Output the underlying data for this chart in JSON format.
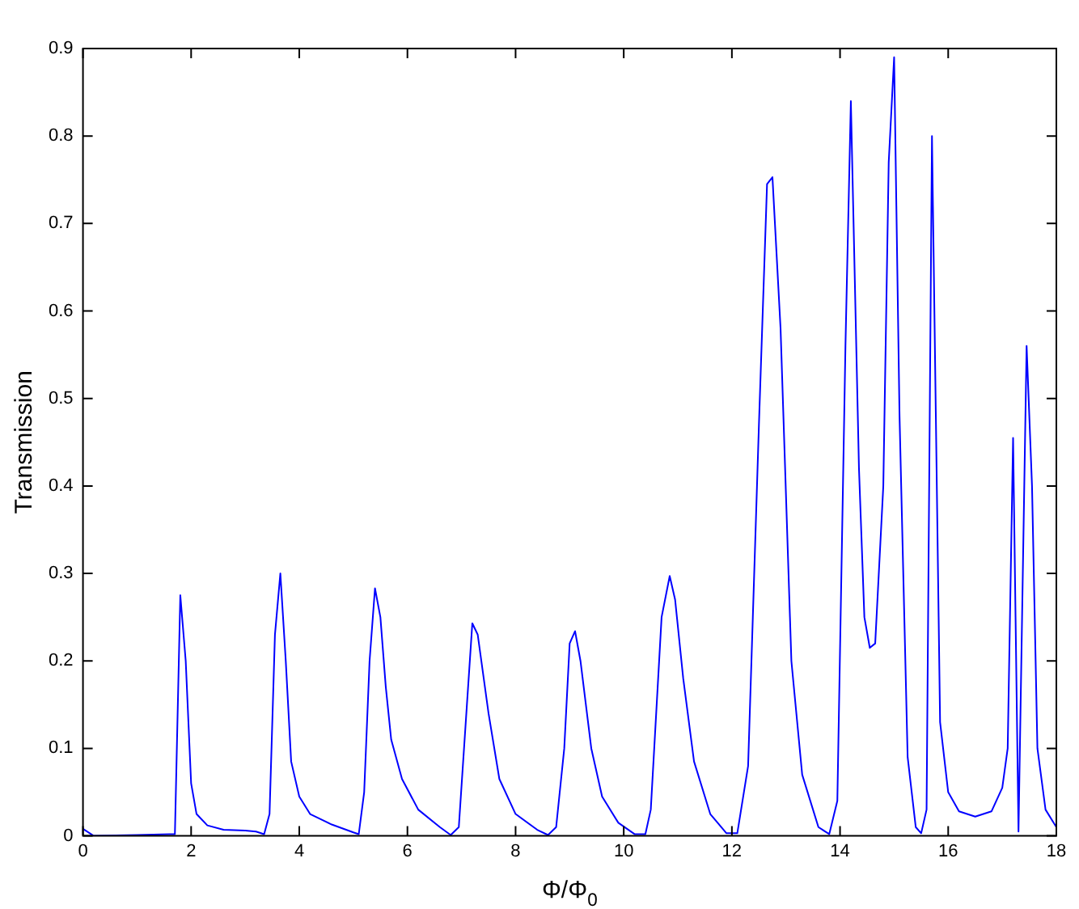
{
  "chart_data": {
    "type": "line",
    "xlabel": "Φ/Φ$_{0}$",
    "ylabel": "Transmission",
    "xlim": [
      0,
      18
    ],
    "xticks": [
      0,
      2,
      4,
      6,
      8,
      10,
      12,
      14,
      16,
      18
    ],
    "ylim": [
      0,
      0.9
    ],
    "yticks": [
      0,
      0.1,
      0.2,
      0.3,
      0.4,
      0.5,
      0.6,
      0.7,
      0.8,
      0.9
    ],
    "grid": false,
    "legend": false,
    "marker": "none",
    "line_style": "solid",
    "series": [
      {
        "color": "#0000ff",
        "x": [
          0,
          0.2,
          1,
          1.6,
          1.7,
          1.8,
          1.9,
          2.0,
          2.1,
          2.3,
          2.6,
          3.0,
          3.2,
          3.35,
          3.45,
          3.55,
          3.65,
          3.75,
          3.85,
          4.0,
          4.2,
          4.6,
          5.0,
          5.1,
          5.2,
          5.3,
          5.4,
          5.5,
          5.6,
          5.7,
          5.9,
          6.2,
          6.6,
          6.8,
          6.95,
          7.1,
          7.2,
          7.3,
          7.5,
          7.7,
          8.0,
          8.4,
          8.6,
          8.75,
          8.9,
          9.0,
          9.1,
          9.2,
          9.4,
          9.6,
          9.9,
          10.2,
          10.4,
          10.5,
          10.7,
          10.85,
          10.95,
          11.1,
          11.3,
          11.6,
          11.9,
          12.1,
          12.3,
          12.5,
          12.65,
          12.75,
          12.9,
          13.1,
          13.3,
          13.6,
          13.8,
          13.95,
          14.1,
          14.2,
          14.35,
          14.45,
          14.55,
          14.65,
          14.8,
          14.9,
          15.0,
          15.1,
          15.25,
          15.4,
          15.5,
          15.6,
          15.7,
          15.85,
          16.0,
          16.2,
          16.5,
          16.8,
          17.0,
          17.1,
          17.2,
          17.3,
          17.45,
          17.55,
          17.65,
          17.8,
          18
        ],
        "values": [
          0.008,
          0,
          0.001,
          0.002,
          0.002,
          0.275,
          0.2,
          0.06,
          0.025,
          0.012,
          0.007,
          0.006,
          0.005,
          0.002,
          0.025,
          0.23,
          0.3,
          0.2,
          0.085,
          0.045,
          0.025,
          0.013,
          0.004,
          0.002,
          0.05,
          0.2,
          0.283,
          0.25,
          0.17,
          0.11,
          0.065,
          0.03,
          0.01,
          0.001,
          0.01,
          0.15,
          0.243,
          0.23,
          0.14,
          0.065,
          0.025,
          0.007,
          0.001,
          0.01,
          0.1,
          0.22,
          0.234,
          0.2,
          0.1,
          0.045,
          0.015,
          0.002,
          0.002,
          0.03,
          0.25,
          0.297,
          0.27,
          0.18,
          0.085,
          0.025,
          0.003,
          0.003,
          0.08,
          0.47,
          0.745,
          0.753,
          0.58,
          0.2,
          0.07,
          0.01,
          0.002,
          0.04,
          0.56,
          0.84,
          0.42,
          0.25,
          0.215,
          0.22,
          0.4,
          0.77,
          0.89,
          0.48,
          0.09,
          0.01,
          0.003,
          0.03,
          0.8,
          0.13,
          0.05,
          0.028,
          0.022,
          0.028,
          0.055,
          0.1,
          0.455,
          0.005,
          0.56,
          0.4,
          0.1,
          0.03,
          0.01
        ]
      }
    ]
  }
}
